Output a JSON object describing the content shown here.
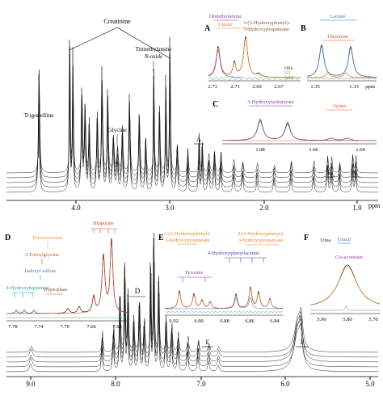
{
  "axis_unit": "ppm",
  "top_spectrum": {
    "ticks": [
      "4.0",
      "3.0",
      "2.0",
      "1.0"
    ],
    "labels": {
      "creatinine": "Creatinine",
      "tmao_line1": "Trimethylamine",
      "tmao_line2": "N-oxide",
      "trigonelline": "Trigonelline",
      "glycine": "Glycine",
      "region_a": "A",
      "region_b": "B",
      "region_c": "C"
    }
  },
  "bottom_spectrum": {
    "ticks": [
      "9.0",
      "8.0",
      "7.0",
      "6.0",
      "5.0"
    ],
    "labels": {
      "region_d": "D",
      "region_e": "E",
      "region_f": "F"
    }
  },
  "inset_a": {
    "letter": "A",
    "ticks": [
      "2.73",
      "2.71",
      "2.69",
      "2.67"
    ],
    "labels": {
      "dimethylamine": "Dimethylamine",
      "citrate": "Citrate",
      "hppa_line1": "3-(3-Hydroxyphenyl)-",
      "hppa_line2": "3-hydroxypropanoate",
      "obs": "OBS",
      "fit": "FIT",
      "diff": "DIFF"
    }
  },
  "inset_b": {
    "letter": "B",
    "ticks": [
      "1.35",
      "1.33"
    ],
    "labels": {
      "lactate": "Lactate",
      "threonine": "Threonine"
    }
  },
  "inset_c": {
    "letter": "C",
    "ticks": [
      "1.08",
      "1.06",
      "1.04"
    ],
    "labels": {
      "hib": "3-Hydroxyisobutyrate",
      "valine": "Valine"
    }
  },
  "inset_d": {
    "letter": "D",
    "ticks": [
      "7.78",
      "7.74",
      "7.70",
      "7.66",
      "7.62"
    ],
    "labels": {
      "hippurate": "Hippurate",
      "pseudouridine": "Pseudouridine",
      "furoylglycine": "2-Furoylglycine",
      "indoxyl": "Indoxyl sulfate",
      "hhip": "4-Hydroxyhippurate",
      "tryptophan": "Tryptophan"
    }
  },
  "inset_e": {
    "letter": "E",
    "ticks": [
      "6.92",
      "6.90",
      "6.88",
      "6.86",
      "6.84"
    ],
    "labels": {
      "hpp1_line1": "3-(3-Hydroxyphenyl)-",
      "hpp1_line2": "3-hydroxypropanoate",
      "hpp2_line1": "3-(3-Hydroxyphenyl)-",
      "hpp2_line2": "3-hydroxypropanoate",
      "hpa": "4-Hydroxyphenylacetate",
      "tyrosine": "Tyrosine"
    }
  },
  "inset_f": {
    "letter": "F",
    "ticks": [
      "5.90",
      "5.80",
      "5.70"
    ],
    "labels": {
      "urea": "Urea",
      "uracil": "Uracil",
      "cis_aconitate": "Cis-aconitate"
    }
  },
  "colors": {
    "obs": "#222222",
    "fit": "#e8852a",
    "diff": "#3a9a4a",
    "dimethylamine": "#8b3fa8",
    "citrate": "#e8852a",
    "lactate": "#3b78c4",
    "threonine": "#e04a2a",
    "hib": "#7b3fa8",
    "valine": "#e8602a",
    "hippurate": "#e04a2a",
    "pseudouridine": "#f0a040",
    "furoylglycine": "#e04a2a",
    "indoxyl": "#4a7ac4",
    "hhip": "#2aa0a8",
    "tryptophan": "#7a5a30",
    "tyrosine": "#8b3fa8",
    "hpa": "#3b4ab0",
    "urea": "#222222",
    "uracil": "#3b78c4"
  },
  "chart_data": [
    {
      "type": "line",
      "title": "",
      "xlabel": "ppm",
      "x_range": [
        4.4,
        0.8
      ],
      "x_ticks": [
        4.0,
        3.0,
        2.0,
        1.0
      ],
      "n_traces": 5,
      "peaks": [
        {
          "x": 4.05,
          "label": "Creatinine"
        },
        {
          "x": 3.03,
          "label": "Creatinine"
        },
        {
          "x": 3.26,
          "label": "Trimethylamine N-oxide"
        },
        {
          "x": 3.56,
          "label": "Glycine"
        },
        {
          "x": 4.43,
          "label": "Trigonelline"
        }
      ],
      "regions": [
        {
          "label": "A",
          "x": 2.7
        },
        {
          "label": "B",
          "x": 1.33
        },
        {
          "label": "C",
          "x": 1.06
        }
      ]
    },
    {
      "type": "line",
      "title": "",
      "xlabel": "ppm",
      "x_range": [
        9.2,
        5.0
      ],
      "x_ticks": [
        9.0,
        8.0,
        7.0,
        6.0,
        5.0
      ],
      "n_traces": 5,
      "regions": [
        {
          "label": "D",
          "x": 7.7
        },
        {
          "label": "E",
          "x": 6.88
        },
        {
          "label": "F",
          "x": 5.8
        }
      ]
    },
    {
      "type": "line",
      "title": "",
      "x_range": [
        2.74,
        2.66
      ],
      "x_ticks": [
        2.73,
        2.71,
        2.69,
        2.67
      ],
      "series": [
        {
          "name": "OBS"
        },
        {
          "name": "FIT"
        },
        {
          "name": "DIFF"
        }
      ],
      "peaks": [
        {
          "x": 2.715,
          "label": "Dimethylamine"
        },
        {
          "x": 2.7,
          "label": "Citrate"
        },
        {
          "x": 2.688,
          "label": "3-(3-Hydroxyphenyl)-3-hydroxypropanoate"
        }
      ]
    },
    {
      "type": "line",
      "title": "",
      "x_range": [
        1.355,
        1.325
      ],
      "x_ticks": [
        1.35,
        1.33
      ],
      "peaks": [
        {
          "x": 1.34,
          "label": "Lactate"
        },
        {
          "x": 1.33,
          "label": "Threonine"
        }
      ]
    },
    {
      "type": "line",
      "title": "",
      "x_range": [
        1.09,
        1.03
      ],
      "x_ticks": [
        1.08,
        1.06,
        1.04
      ],
      "peaks": [
        {
          "x": 1.075,
          "label": "3-Hydroxyisobutyrate"
        },
        {
          "x": 1.04,
          "label": "Valine"
        }
      ]
    },
    {
      "type": "line",
      "title": "",
      "x_range": [
        7.79,
        7.61
      ],
      "x_ticks": [
        7.78,
        7.74,
        7.7,
        7.66,
        7.62
      ],
      "peaks": [
        {
          "x": 7.64,
          "label": "Hippurate"
        },
        {
          "x": 7.69,
          "label": "Pseudouridine"
        },
        {
          "x": 7.69,
          "label": "2-Furoylglycine"
        },
        {
          "x": 7.71,
          "label": "Indoxyl sulfate"
        },
        {
          "x": 7.76,
          "label": "4-Hydroxyhippurate"
        },
        {
          "x": 7.73,
          "label": "Tryptophan"
        }
      ]
    },
    {
      "type": "line",
      "title": "",
      "x_range": [
        6.93,
        6.83
      ],
      "x_ticks": [
        6.92,
        6.9,
        6.88,
        6.86,
        6.84
      ],
      "peaks": [
        {
          "x": 6.915,
          "label": "3-(3-Hydroxyphenyl)-3-hydroxypropanoate"
        },
        {
          "x": 6.86,
          "label": "4-Hydroxyphenylacetate"
        },
        {
          "x": 6.895,
          "label": "Tyrosine"
        }
      ]
    },
    {
      "type": "line",
      "title": "",
      "x_range": [
        5.93,
        5.67
      ],
      "x_ticks": [
        5.9,
        5.8,
        5.7
      ],
      "peaks": [
        {
          "x": 5.8,
          "label": "Urea"
        },
        {
          "x": 5.8,
          "label": "Uracil"
        },
        {
          "x": 5.78,
          "label": "Cis-aconitate"
        }
      ]
    }
  ]
}
